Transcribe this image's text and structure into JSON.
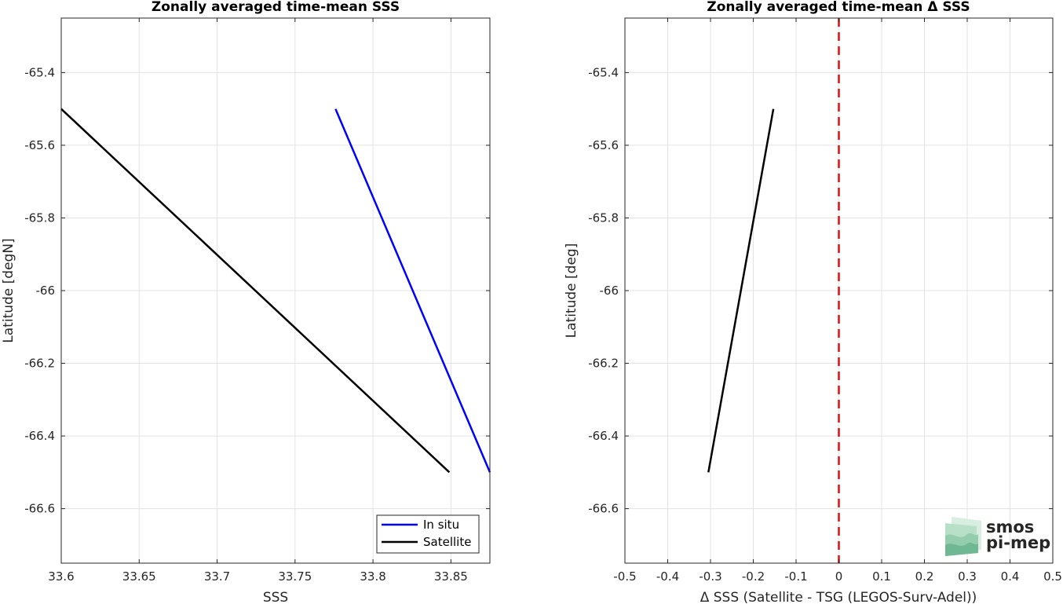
{
  "chart_data": [
    {
      "type": "line",
      "title": "Zonally averaged time-mean SSS",
      "xlabel": "SSS",
      "ylabel": "Latitude [degN]",
      "xlim": [
        33.6,
        33.875
      ],
      "ylim": [
        -66.75,
        -65.25
      ],
      "xticks": [
        33.6,
        33.65,
        33.7,
        33.75,
        33.8,
        33.85
      ],
      "xtick_labels": [
        "33.6",
        "33.65",
        "33.7",
        "33.75",
        "33.8",
        "33.85"
      ],
      "yticks": [
        -65.4,
        -65.6,
        -65.8,
        -66,
        -66.2,
        -66.4,
        -66.6
      ],
      "ytick_labels": [
        "-65.4",
        "-65.6",
        "-65.8",
        "-66",
        "-66.2",
        "-66.4",
        "-66.6"
      ],
      "grid": true,
      "legend_position": "bottom-right",
      "series": [
        {
          "name": "In situ",
          "color": "#0000ff",
          "x": [
            33.776,
            33.875
          ],
          "y": [
            -65.5,
            -66.5
          ]
        },
        {
          "name": "Satellite",
          "color": "#000000",
          "x": [
            33.6,
            33.849
          ],
          "y": [
            -65.5,
            -66.5
          ]
        }
      ]
    },
    {
      "type": "line",
      "title": "Zonally averaged time-mean Δ SSS",
      "xlabel": "Δ SSS (Satellite - TSG (LEGOS-Surv-Adel))",
      "ylabel": "Latitude [deg]",
      "xlim": [
        -0.5,
        0.5
      ],
      "ylim": [
        -66.75,
        -65.25
      ],
      "xticks": [
        -0.5,
        -0.4,
        -0.3,
        -0.2,
        -0.1,
        0,
        0.1,
        0.2,
        0.3,
        0.4,
        0.5
      ],
      "xtick_labels": [
        "-0.5",
        "-0.4",
        "-0.3",
        "-0.2",
        "-0.1",
        "0",
        "0.1",
        "0.2",
        "0.3",
        "0.4",
        "0.5"
      ],
      "yticks": [
        -65.4,
        -65.6,
        -65.8,
        -66,
        -66.2,
        -66.4,
        -66.6
      ],
      "ytick_labels": [
        "-65.4",
        "-65.6",
        "-65.8",
        "-66",
        "-66.2",
        "-66.4",
        "-66.6"
      ],
      "grid": true,
      "series": [
        {
          "color": "#000000",
          "x": [
            -0.153,
            -0.305
          ],
          "y": [
            -65.5,
            -66.5
          ]
        }
      ],
      "reference_line": {
        "x": 0,
        "color": "#dd1111",
        "style": "dashed"
      }
    }
  ],
  "logo": {
    "line1": "smos",
    "line2": "pi-mep",
    "color": "#7fbf9f"
  }
}
